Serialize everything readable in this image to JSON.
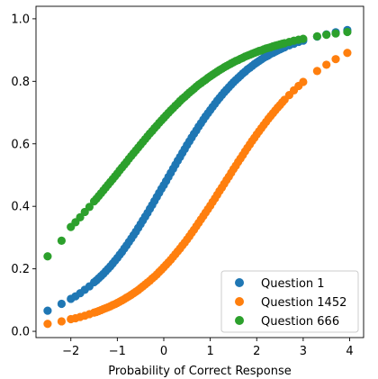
{
  "chart_data": {
    "type": "scatter",
    "title": "",
    "xlabel": "Probability of Correct Response",
    "ylabel": "",
    "xlim": [
      -2.75,
      4.3
    ],
    "ylim": [
      -0.02,
      1.04
    ],
    "xticks": [
      -2,
      -1,
      0,
      1,
      2,
      3,
      4
    ],
    "xtick_labels": [
      "−2",
      "−1",
      "0",
      "1",
      "2",
      "3",
      "4"
    ],
    "yticks": [
      0.0,
      0.2,
      0.4,
      0.6,
      0.8,
      1.0
    ],
    "ytick_labels": [
      "0.0",
      "0.2",
      "0.4",
      "0.6",
      "0.8",
      "1.0"
    ],
    "grid": false,
    "legend_position": "bottom-right",
    "x": [
      -2.5,
      -2.2,
      -2.0,
      -1.9,
      -1.8,
      -1.7,
      -1.6,
      -1.5,
      -1.45,
      -1.4,
      -1.35,
      -1.3,
      -1.25,
      -1.2,
      -1.15,
      -1.1,
      -1.05,
      -1.0,
      -0.95,
      -0.9,
      -0.85,
      -0.8,
      -0.75,
      -0.7,
      -0.65,
      -0.6,
      -0.55,
      -0.5,
      -0.45,
      -0.4,
      -0.35,
      -0.3,
      -0.25,
      -0.2,
      -0.15,
      -0.1,
      -0.05,
      0.0,
      0.05,
      0.1,
      0.15,
      0.2,
      0.25,
      0.3,
      0.35,
      0.4,
      0.45,
      0.5,
      0.55,
      0.6,
      0.65,
      0.7,
      0.75,
      0.8,
      0.85,
      0.9,
      0.95,
      1.0,
      1.05,
      1.1,
      1.15,
      1.2,
      1.25,
      1.3,
      1.35,
      1.4,
      1.45,
      1.5,
      1.55,
      1.6,
      1.65,
      1.7,
      1.75,
      1.8,
      1.85,
      1.9,
      1.95,
      2.0,
      2.05,
      2.1,
      2.15,
      2.2,
      2.25,
      2.3,
      2.35,
      2.4,
      2.45,
      2.5,
      2.55,
      2.6,
      2.7,
      2.8,
      2.9,
      3.0,
      3.3,
      3.5,
      3.7,
      3.95
    ],
    "series": [
      {
        "name": "Question 1",
        "color": "#1f77b4",
        "values": [
          0.066,
          0.088,
          0.104,
          0.112,
          0.122,
          0.133,
          0.144,
          0.157,
          0.163,
          0.17,
          0.177,
          0.184,
          0.192,
          0.2,
          0.208,
          0.217,
          0.226,
          0.235,
          0.245,
          0.254,
          0.265,
          0.275,
          0.286,
          0.297,
          0.308,
          0.319,
          0.331,
          0.343,
          0.355,
          0.367,
          0.379,
          0.392,
          0.404,
          0.417,
          0.43,
          0.443,
          0.456,
          0.468,
          0.481,
          0.494,
          0.507,
          0.52,
          0.533,
          0.546,
          0.558,
          0.571,
          0.583,
          0.596,
          0.608,
          0.62,
          0.632,
          0.643,
          0.655,
          0.666,
          0.677,
          0.688,
          0.698,
          0.708,
          0.718,
          0.728,
          0.738,
          0.747,
          0.756,
          0.765,
          0.773,
          0.781,
          0.789,
          0.797,
          0.804,
          0.811,
          0.818,
          0.825,
          0.831,
          0.838,
          0.843,
          0.849,
          0.855,
          0.86,
          0.865,
          0.87,
          0.875,
          0.879,
          0.883,
          0.888,
          0.891,
          0.895,
          0.899,
          0.902,
          0.906,
          0.909,
          0.915,
          0.92,
          0.926,
          0.93,
          0.943,
          0.95,
          0.957,
          0.964
        ]
      },
      {
        "name": "Question 1452",
        "color": "#ff7f0e",
        "values": [
          0.024,
          0.032,
          0.039,
          0.042,
          0.046,
          0.05,
          0.055,
          0.06,
          0.062,
          0.065,
          0.068,
          0.071,
          0.074,
          0.077,
          0.08,
          0.084,
          0.087,
          0.091,
          0.095,
          0.099,
          0.103,
          0.108,
          0.112,
          0.117,
          0.122,
          0.127,
          0.132,
          0.138,
          0.144,
          0.15,
          0.156,
          0.162,
          0.169,
          0.175,
          0.182,
          0.19,
          0.197,
          0.205,
          0.213,
          0.221,
          0.229,
          0.238,
          0.247,
          0.256,
          0.265,
          0.275,
          0.284,
          0.294,
          0.304,
          0.315,
          0.325,
          0.336,
          0.347,
          0.358,
          0.369,
          0.38,
          0.391,
          0.402,
          0.414,
          0.425,
          0.437,
          0.449,
          0.46,
          0.472,
          0.484,
          0.495,
          0.507,
          0.519,
          0.53,
          0.542,
          0.553,
          0.564,
          0.576,
          0.587,
          0.598,
          0.609,
          0.619,
          0.63,
          0.64,
          0.65,
          0.66,
          0.67,
          0.68,
          0.689,
          0.698,
          0.707,
          0.716,
          0.724,
          0.733,
          0.741,
          0.756,
          0.771,
          0.785,
          0.798,
          0.833,
          0.853,
          0.871,
          0.891
        ]
      },
      {
        "name": "Question 666",
        "color": "#2ca02c",
        "values": [
          0.24,
          0.29,
          0.334,
          0.349,
          0.365,
          0.382,
          0.398,
          0.416,
          0.424,
          0.433,
          0.442,
          0.451,
          0.46,
          0.469,
          0.478,
          0.487,
          0.496,
          0.505,
          0.515,
          0.524,
          0.533,
          0.542,
          0.552,
          0.561,
          0.57,
          0.579,
          0.588,
          0.597,
          0.606,
          0.615,
          0.624,
          0.633,
          0.641,
          0.65,
          0.658,
          0.667,
          0.675,
          0.683,
          0.691,
          0.699,
          0.707,
          0.714,
          0.722,
          0.729,
          0.737,
          0.744,
          0.75,
          0.757,
          0.764,
          0.77,
          0.776,
          0.783,
          0.789,
          0.794,
          0.8,
          0.805,
          0.811,
          0.816,
          0.821,
          0.826,
          0.831,
          0.836,
          0.84,
          0.845,
          0.849,
          0.853,
          0.857,
          0.861,
          0.865,
          0.868,
          0.872,
          0.875,
          0.879,
          0.882,
          0.885,
          0.888,
          0.891,
          0.894,
          0.897,
          0.899,
          0.902,
          0.905,
          0.907,
          0.909,
          0.912,
          0.914,
          0.916,
          0.918,
          0.92,
          0.922,
          0.926,
          0.93,
          0.933,
          0.936,
          0.944,
          0.949,
          0.953,
          0.958
        ]
      }
    ]
  }
}
